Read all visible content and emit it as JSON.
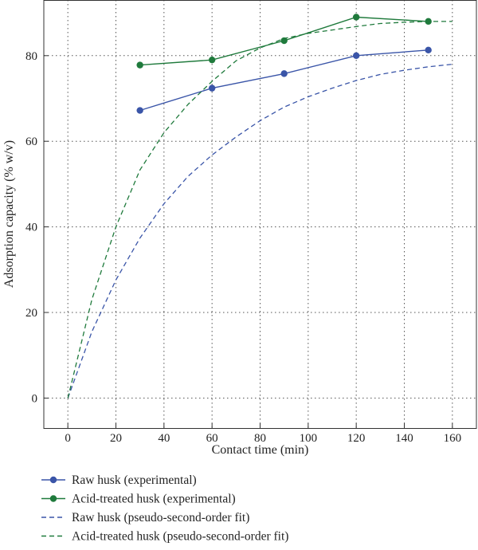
{
  "chart_data": {
    "type": "line",
    "title": "",
    "xlabel": "Contact time (min)",
    "ylabel": "Adsorption capacity (% w/v)",
    "xlim": [
      -10,
      170
    ],
    "ylim": [
      -7,
      93
    ],
    "xticks": [
      0,
      20,
      40,
      60,
      80,
      100,
      120,
      140,
      160
    ],
    "yticks": [
      0,
      20,
      40,
      60,
      80
    ],
    "grid": true,
    "legend_position": "bottom",
    "series": [
      {
        "name": "Raw husk (experimental)",
        "style": "solid-marker",
        "color": "#3a55a8",
        "x": [
          30,
          60,
          90,
          120,
          150
        ],
        "y": [
          67.2,
          72.4,
          75.8,
          80.0,
          81.3
        ]
      },
      {
        "name": "Acid-treated husk (experimental)",
        "style": "solid-marker",
        "color": "#1f7a3c",
        "x": [
          30,
          60,
          90,
          120,
          150
        ],
        "y": [
          77.8,
          79.0,
          83.5,
          89.0,
          88.0
        ]
      },
      {
        "name": "Raw husk (pseudo-second-order fit)",
        "style": "dashed",
        "color": "#3a55a8",
        "x": [
          0,
          10,
          20,
          30,
          40,
          50,
          60,
          70,
          80,
          90,
          100,
          110,
          120,
          130,
          140,
          150,
          160
        ],
        "y": [
          0,
          15.5,
          27.6,
          37.4,
          45.4,
          51.8,
          56.8,
          61.0,
          64.8,
          68.0,
          70.4,
          72.4,
          74.2,
          75.6,
          76.6,
          77.4,
          78.0
        ]
      },
      {
        "name": "Acid-treated husk (pseudo-second-order fit)",
        "style": "dashed",
        "color": "#1f7a3c",
        "x": [
          0,
          10,
          20,
          30,
          40,
          50,
          60,
          70,
          80,
          90,
          100,
          110,
          120,
          130,
          140,
          150,
          160
        ],
        "y": [
          0,
          23.0,
          40.0,
          53.3,
          62.0,
          68.6,
          74.0,
          78.8,
          81.8,
          84.0,
          85.2,
          86.0,
          86.8,
          87.5,
          87.8,
          88.0,
          88.0
        ]
      }
    ]
  }
}
